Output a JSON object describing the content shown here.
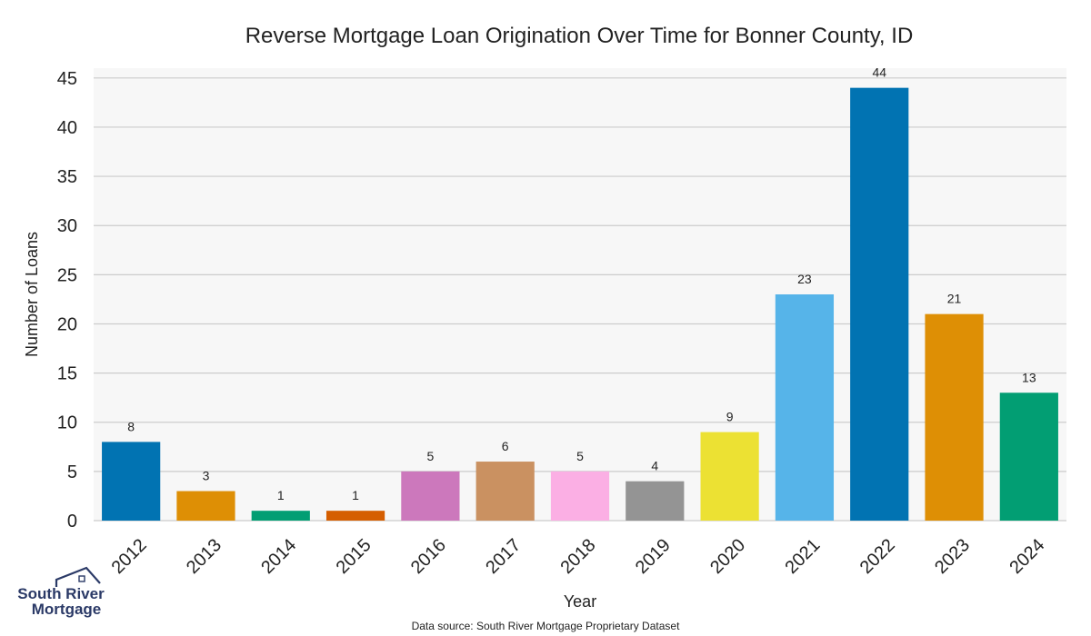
{
  "chart_data": {
    "type": "bar",
    "title": "Reverse Mortgage Loan Origination Over Time for Bonner County, ID",
    "xlabel": "Year",
    "ylabel": "Number of Loans",
    "categories": [
      "2012",
      "2013",
      "2014",
      "2015",
      "2016",
      "2017",
      "2018",
      "2019",
      "2020",
      "2021",
      "2022",
      "2023",
      "2024"
    ],
    "values": [
      8,
      3,
      1,
      1,
      5,
      6,
      5,
      4,
      9,
      23,
      44,
      21,
      13
    ],
    "colors": [
      "#0173b2",
      "#de8f05",
      "#029e73",
      "#d55e00",
      "#cc78bc",
      "#ca9161",
      "#fbafe4",
      "#949494",
      "#ece133",
      "#56b4e9",
      "#0173b2",
      "#de8f05",
      "#029e73"
    ],
    "ylim": [
      0,
      46
    ],
    "yticks": [
      0,
      5,
      10,
      15,
      20,
      25,
      30,
      35,
      40,
      45
    ],
    "grid": true,
    "plot_background": "#f7f7f7",
    "grid_color": "#cccccc"
  },
  "footer": {
    "source": "Data source: South River Mortgage Proprietary Dataset"
  },
  "logo": {
    "line1": "South River",
    "line2": "Mortgage",
    "color": "#2b3a67"
  }
}
